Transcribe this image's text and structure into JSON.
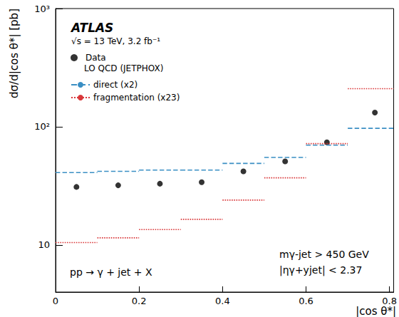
{
  "chart_data": {
    "type": "scatter",
    "x_label": "|cos θ*|",
    "y_label": "dσ/d|cos θ*| [pb]",
    "annotations": [
      "ATLAS",
      "√s = 13 TeV, 3.2 fb⁻¹",
      "mγ-jet > 450 GeV",
      "|ηγ+yjet| < 2.37",
      "pp → γ + jet + X"
    ],
    "legend_title": "LO QCD (JETPHOX)",
    "legend": "upper left",
    "log": "y",
    "grid": false,
    "xlim": [
      0,
      0.81
    ],
    "xticks": [
      0,
      0.2,
      0.4,
      0.6,
      0.8
    ],
    "ylim": [
      4,
      1000
    ],
    "yticks": [
      10,
      {
        "value": 100,
        "label": "10²"
      },
      {
        "value": 1000,
        "label": "10³"
      }
    ],
    "series": [
      {
        "name": "Data",
        "type": "scatter",
        "marker": "circle",
        "color": "#000000",
        "x": [
          0.05,
          0.15,
          0.25,
          0.35,
          0.45,
          0.55,
          0.65,
          0.765
        ],
        "values": [
          31,
          32,
          33,
          34,
          42,
          51,
          74,
          132
        ]
      },
      {
        "name": "direct (x2)",
        "type": "step",
        "line_style": "dashed",
        "color": "#3a8fc4",
        "bins": [
          0,
          0.1,
          0.2,
          0.3,
          0.4,
          0.5,
          0.6,
          0.7,
          0.81
        ],
        "values": [
          41,
          42,
          43,
          43,
          49,
          55,
          70,
          97
        ]
      },
      {
        "name": "fragmentation (x23)",
        "type": "step",
        "line_style": "dotted",
        "color": "#d9383a",
        "bins": [
          0,
          0.1,
          0.2,
          0.3,
          0.4,
          0.5,
          0.6,
          0.7,
          0.81
        ],
        "values": [
          10.5,
          11.5,
          13.5,
          16.5,
          24,
          37,
          72,
          210
        ]
      }
    ]
  }
}
